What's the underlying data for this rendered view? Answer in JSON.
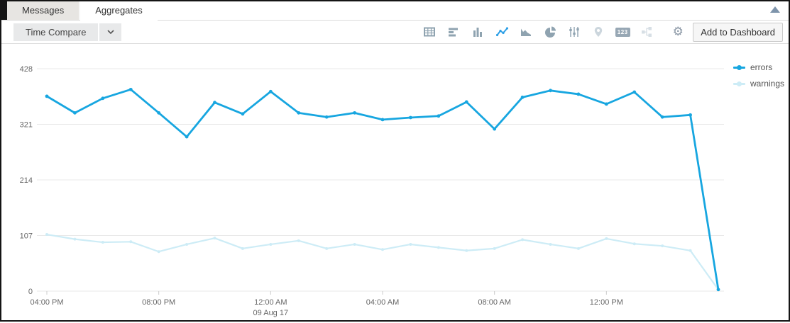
{
  "tabs": {
    "items": [
      {
        "label": "Messages",
        "active": false
      },
      {
        "label": "Aggregates",
        "active": true
      }
    ]
  },
  "toolbar": {
    "time_compare_label": "Time Compare",
    "add_to_dashboard_label": "Add to Dashboard",
    "single_value_badge": "123",
    "icons": [
      {
        "name": "table-icon",
        "state": "normal"
      },
      {
        "name": "horizontal-bars-icon",
        "state": "normal"
      },
      {
        "name": "column-chart-icon",
        "state": "normal"
      },
      {
        "name": "line-chart-icon",
        "state": "active"
      },
      {
        "name": "area-chart-icon",
        "state": "normal"
      },
      {
        "name": "pie-chart-icon",
        "state": "normal"
      },
      {
        "name": "sliders-icon",
        "state": "normal"
      },
      {
        "name": "map-pin-icon",
        "state": "disabled"
      },
      {
        "name": "single-value-icon",
        "state": "normal"
      },
      {
        "name": "transpose-icon",
        "state": "disabled"
      },
      {
        "name": "gear-icon",
        "state": "normal"
      }
    ],
    "colors": {
      "icon_normal": "#8fa3b0",
      "icon_active": "#2d9fe6",
      "icon_disabled": "#ccd6dd"
    }
  },
  "panel": {
    "collapse_icon": "triangle-up"
  },
  "chart_data": {
    "type": "line",
    "title": "",
    "xlabel": "",
    "ylabel": "",
    "x": [
      "16:00",
      "17:00",
      "18:00",
      "19:00",
      "20:00",
      "21:00",
      "22:00",
      "23:00",
      "00:00",
      "01:00",
      "02:00",
      "03:00",
      "04:00",
      "05:00",
      "06:00",
      "07:00",
      "08:00",
      "09:00",
      "10:00",
      "11:00",
      "12:00",
      "13:00",
      "14:00",
      "15:00",
      "16:00"
    ],
    "series": [
      {
        "name": "errors",
        "color": "#17a6e0",
        "values": [
          375,
          343,
          371,
          388,
          343,
          297,
          363,
          341,
          384,
          343,
          335,
          343,
          330,
          334,
          337,
          364,
          312,
          373,
          386,
          379,
          360,
          383,
          335,
          339,
          3
        ]
      },
      {
        "name": "warnings",
        "color": "#cdecf6",
        "values": [
          109,
          100,
          94,
          95,
          76,
          90,
          102,
          82,
          90,
          97,
          82,
          90,
          80,
          90,
          84,
          78,
          82,
          99,
          90,
          82,
          101,
          91,
          87,
          78,
          3
        ]
      }
    ],
    "ylim": [
      0,
      428
    ],
    "yticks": [
      0,
      107,
      214,
      321,
      428
    ],
    "xticks": [
      {
        "index": 0,
        "label": "04:00 PM"
      },
      {
        "index": 4,
        "label": "08:00 PM"
      },
      {
        "index": 8,
        "label": "12:00 AM",
        "sublabel": "09 Aug 17"
      },
      {
        "index": 12,
        "label": "04:00 AM"
      },
      {
        "index": 16,
        "label": "08:00 AM"
      },
      {
        "index": 20,
        "label": "12:00 PM"
      }
    ],
    "grid": "horizontal",
    "legend_position": "top-right",
    "axis_text_color": "#666666",
    "grid_color": "#e8e8e8"
  }
}
